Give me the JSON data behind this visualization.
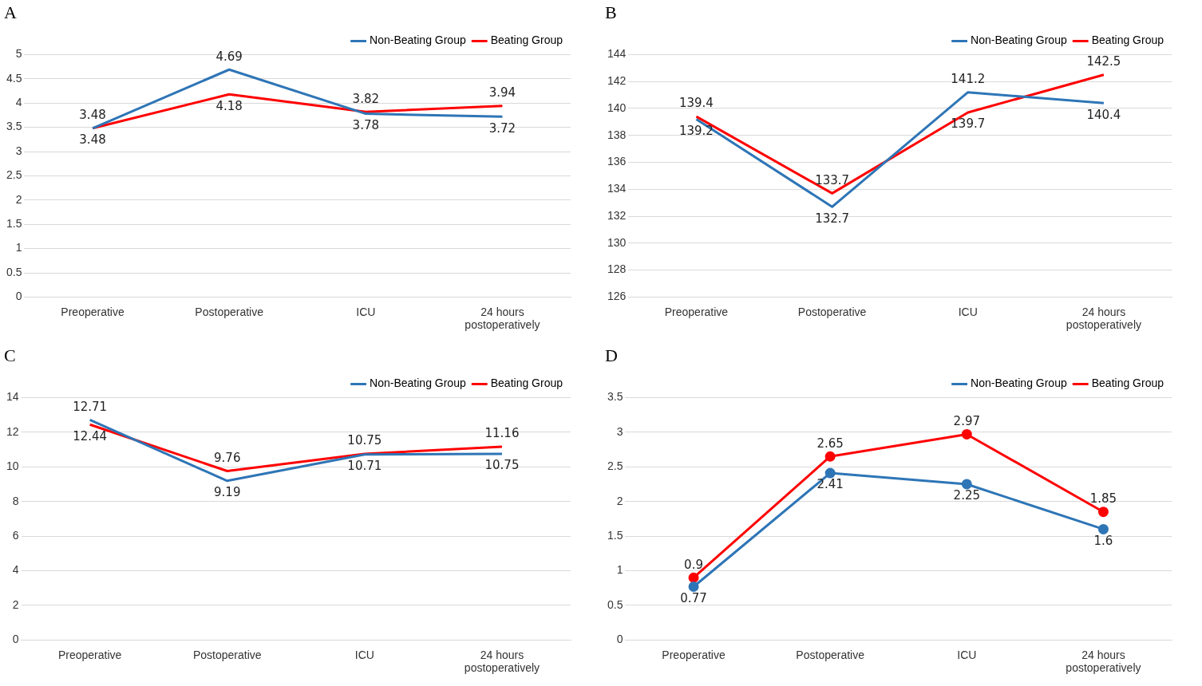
{
  "chart_data": [
    {
      "type": "line",
      "title": "A",
      "categories": [
        "Preoperative",
        "Postoperative",
        "ICU",
        "24 hours postoperatively"
      ],
      "series": [
        {
          "name": "Non-Beating Group",
          "color": "#2e75b6",
          "values": [
            3.48,
            4.69,
            3.78,
            3.72
          ]
        },
        {
          "name": "Beating Group",
          "color": "#ff0000",
          "values": [
            3.48,
            4.18,
            3.82,
            3.94
          ]
        }
      ],
      "ylim": [
        0,
        5
      ],
      "yticks": [
        0,
        0.5,
        1,
        1.5,
        2,
        2.5,
        3,
        3.5,
        4,
        4.5,
        5
      ],
      "grid": "y",
      "legend": "top right",
      "data_labels": true
    },
    {
      "type": "line",
      "title": "B",
      "categories": [
        "Preoperative",
        "Postoperative",
        "ICU",
        "24 hours postoperatively"
      ],
      "series": [
        {
          "name": "Non-Beating Group",
          "color": "#2e75b6",
          "values": [
            139.2,
            132.7,
            141.2,
            140.4
          ]
        },
        {
          "name": "Beating Group",
          "color": "#ff0000",
          "values": [
            139.4,
            133.7,
            139.7,
            142.5
          ]
        }
      ],
      "ylim": [
        126,
        144
      ],
      "yticks": [
        126,
        128,
        130,
        132,
        134,
        136,
        138,
        140,
        142,
        144
      ],
      "grid": "y",
      "legend": "top right",
      "data_labels": true
    },
    {
      "type": "line",
      "title": "C",
      "categories": [
        "Preoperative",
        "Postoperative",
        "ICU",
        "24 hours postoperatively"
      ],
      "series": [
        {
          "name": "Non-Beating Group",
          "color": "#2e75b6",
          "values": [
            12.71,
            9.19,
            10.71,
            10.75
          ]
        },
        {
          "name": "Beating Group",
          "color": "#ff0000",
          "values": [
            12.44,
            9.76,
            10.75,
            11.16
          ]
        }
      ],
      "ylim": [
        0,
        14
      ],
      "yticks": [
        0,
        2,
        4,
        6,
        8,
        10,
        12,
        14
      ],
      "grid": "y",
      "legend": "top right",
      "data_labels": true
    },
    {
      "type": "line",
      "title": "D",
      "categories": [
        "Preoperative",
        "Postoperative",
        "ICU",
        "24 hours postoperatively"
      ],
      "series": [
        {
          "name": "Non-Beating Group",
          "color": "#2e75b6",
          "values": [
            0.77,
            2.41,
            2.25,
            1.6
          ]
        },
        {
          "name": "Beating Group",
          "color": "#ff0000",
          "values": [
            0.9,
            2.65,
            2.97,
            1.85
          ]
        }
      ],
      "ylim": [
        0,
        3.5
      ],
      "yticks": [
        0,
        0.5,
        1,
        1.5,
        2,
        2.5,
        3,
        3.5
      ],
      "grid": "y",
      "legend": "top right",
      "data_labels": true,
      "marker": "circle"
    }
  ]
}
